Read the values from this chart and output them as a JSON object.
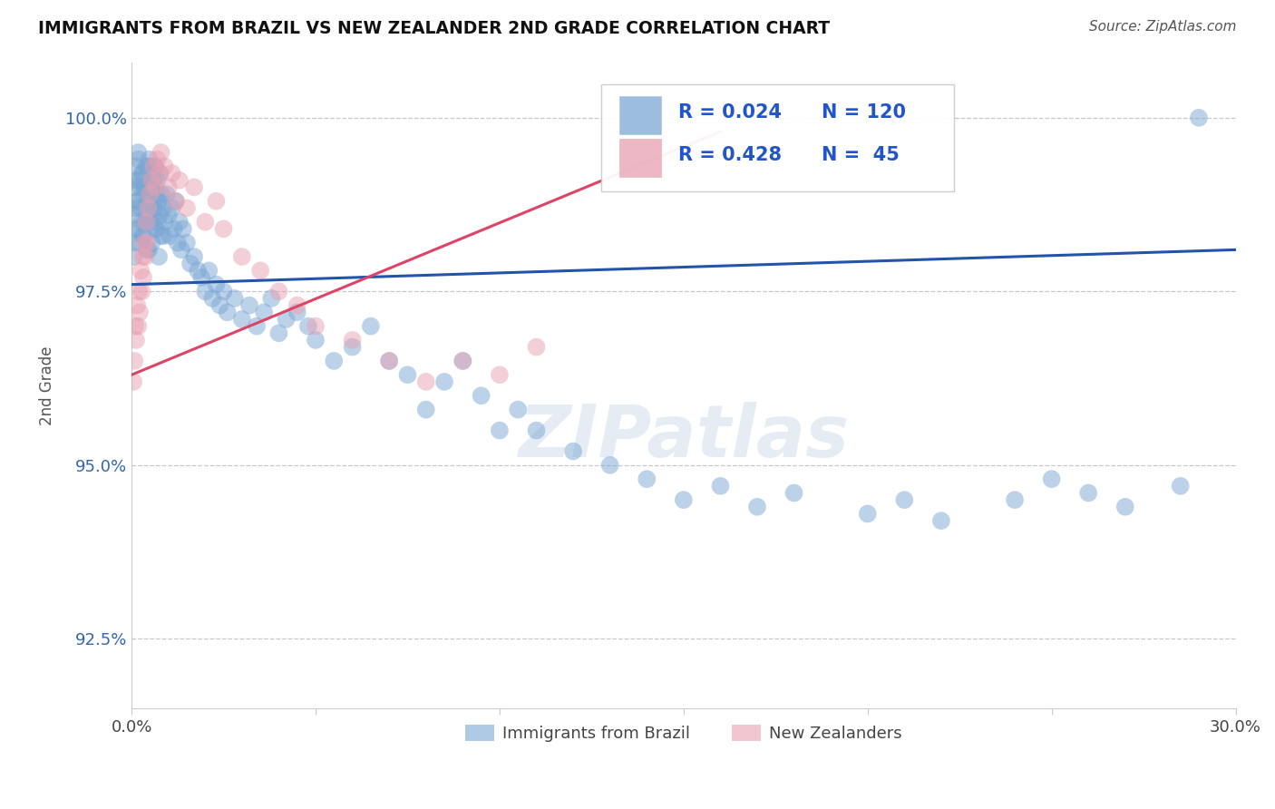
{
  "title": "IMMIGRANTS FROM BRAZIL VS NEW ZEALANDER 2ND GRADE CORRELATION CHART",
  "source_text": "Source: ZipAtlas.com",
  "ylabel": "2nd Grade",
  "x_min": 0.0,
  "x_max": 30.0,
  "y_min": 91.5,
  "y_max": 100.8,
  "y_ticks": [
    92.5,
    95.0,
    97.5,
    100.0
  ],
  "x_ticks": [
    0.0,
    5.0,
    10.0,
    15.0,
    20.0,
    25.0,
    30.0
  ],
  "x_tick_labels": [
    "0.0%",
    "",
    "",
    "",
    "",
    "",
    "30.0%"
  ],
  "y_tick_labels": [
    "92.5%",
    "95.0%",
    "97.5%",
    "100.0%"
  ],
  "blue_color": "#7ba7d4",
  "pink_color": "#e8a0b0",
  "blue_line_color": "#2255aa",
  "pink_line_color": "#dd4466",
  "legend_color": "#2255cc",
  "watermark": "ZIPatlas",
  "brazil_x": [
    0.05,
    0.08,
    0.1,
    0.12,
    0.15,
    0.18,
    0.2,
    0.22,
    0.25,
    0.28,
    0.3,
    0.32,
    0.35,
    0.38,
    0.4,
    0.42,
    0.45,
    0.48,
    0.5,
    0.52,
    0.55,
    0.58,
    0.6,
    0.62,
    0.65,
    0.68,
    0.7,
    0.72,
    0.75,
    0.78,
    0.8,
    0.85,
    0.9,
    0.95,
    1.0,
    1.05,
    1.1,
    1.15,
    1.2,
    1.25,
    1.3,
    1.35,
    1.4,
    1.5,
    1.6,
    1.7,
    1.8,
    1.9,
    2.0,
    2.1,
    2.2,
    2.3,
    2.4,
    2.5,
    2.6,
    2.8,
    3.0,
    3.2,
    3.4,
    3.6,
    3.8,
    4.0,
    4.2,
    4.5,
    4.8,
    5.0,
    5.5,
    6.0,
    6.5,
    7.0,
    7.5,
    8.0,
    8.5,
    9.0,
    9.5,
    10.0,
    10.5,
    11.0,
    12.0,
    13.0,
    14.0,
    15.0,
    16.0,
    17.0,
    18.0,
    20.0,
    21.0,
    22.0,
    24.0,
    25.0,
    26.0,
    27.0,
    28.5,
    29.0,
    0.06,
    0.09,
    0.11,
    0.14,
    0.16,
    0.19,
    0.21,
    0.24,
    0.27,
    0.31,
    0.34,
    0.37,
    0.41,
    0.44,
    0.47,
    0.51,
    0.54,
    0.57,
    0.61,
    0.64,
    0.67,
    0.71,
    0.74,
    0.77,
    0.81,
    0.86
  ],
  "brazil_y": [
    98.2,
    99.0,
    98.6,
    99.3,
    98.8,
    99.5,
    98.4,
    99.1,
    98.7,
    99.2,
    98.3,
    98.9,
    99.0,
    98.5,
    99.3,
    98.1,
    98.8,
    99.4,
    98.6,
    99.0,
    98.2,
    99.1,
    98.7,
    99.3,
    98.4,
    98.9,
    99.1,
    98.5,
    98.8,
    99.2,
    98.3,
    98.7,
    98.5,
    98.9,
    98.6,
    98.3,
    98.7,
    98.4,
    98.8,
    98.2,
    98.5,
    98.1,
    98.4,
    98.2,
    97.9,
    98.0,
    97.8,
    97.7,
    97.5,
    97.8,
    97.4,
    97.6,
    97.3,
    97.5,
    97.2,
    97.4,
    97.1,
    97.3,
    97.0,
    97.2,
    97.4,
    96.9,
    97.1,
    97.2,
    97.0,
    96.8,
    96.5,
    96.7,
    97.0,
    96.5,
    96.3,
    95.8,
    96.2,
    96.5,
    96.0,
    95.5,
    95.8,
    95.5,
    95.2,
    95.0,
    94.8,
    94.5,
    94.7,
    94.4,
    94.6,
    94.3,
    94.5,
    94.2,
    94.5,
    94.8,
    94.6,
    94.4,
    94.7,
    100.0,
    98.0,
    98.7,
    98.4,
    99.1,
    98.8,
    99.4,
    98.2,
    99.0,
    98.5,
    99.2,
    98.3,
    99.0,
    98.6,
    99.3,
    98.1,
    98.9,
    98.5,
    99.1,
    98.7,
    99.3,
    98.4,
    98.8,
    98.0,
    98.6,
    98.9,
    98.3
  ],
  "nz_x": [
    0.05,
    0.08,
    0.1,
    0.12,
    0.15,
    0.18,
    0.2,
    0.22,
    0.25,
    0.28,
    0.3,
    0.32,
    0.35,
    0.38,
    0.4,
    0.42,
    0.45,
    0.5,
    0.55,
    0.6,
    0.65,
    0.7,
    0.75,
    0.8,
    0.9,
    1.0,
    1.1,
    1.2,
    1.3,
    1.5,
    1.7,
    2.0,
    2.3,
    2.5,
    3.0,
    3.5,
    4.0,
    4.5,
    5.0,
    6.0,
    7.0,
    8.0,
    9.0,
    10.0,
    11.0
  ],
  "nz_y": [
    96.2,
    96.5,
    97.0,
    96.8,
    97.3,
    97.0,
    97.5,
    97.2,
    97.8,
    97.5,
    98.0,
    97.7,
    98.2,
    98.0,
    98.5,
    98.2,
    98.7,
    98.9,
    99.1,
    99.3,
    99.0,
    99.4,
    99.2,
    99.5,
    99.3,
    99.0,
    99.2,
    98.8,
    99.1,
    98.7,
    99.0,
    98.5,
    98.8,
    98.4,
    98.0,
    97.8,
    97.5,
    97.3,
    97.0,
    96.8,
    96.5,
    96.2,
    96.5,
    96.3,
    96.7
  ],
  "blue_line_x0": 0.0,
  "blue_line_x1": 30.0,
  "blue_line_y0": 97.6,
  "blue_line_y1": 98.1,
  "pink_line_x0": 0.0,
  "pink_line_x1": 16.0,
  "pink_line_y0": 96.3,
  "pink_line_y1": 99.8
}
